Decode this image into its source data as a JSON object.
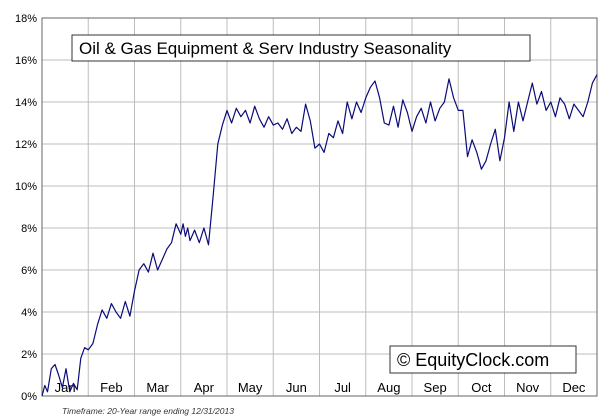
{
  "chart_data": {
    "type": "line",
    "title": "Oil & Gas Equipment & Serv Industry Seasonality",
    "xlabel": "",
    "ylabel": "",
    "ylim": [
      0,
      18
    ],
    "y_ticks": [
      "0%",
      "2%",
      "4%",
      "6%",
      "8%",
      "10%",
      "12%",
      "14%",
      "16%",
      "18%"
    ],
    "months": [
      "Jan",
      "Feb",
      "Mar",
      "Apr",
      "May",
      "Jun",
      "Jul",
      "Aug",
      "Sep",
      "Oct",
      "Nov",
      "Dec"
    ],
    "grid": true,
    "line_color": "#0b0b7a",
    "watermark": "© EquityClock.com",
    "footnote": "Timeframe: 20-Year range ending 12/31/2013",
    "series": [
      {
        "x": [
          0.0,
          0.06,
          0.12,
          0.2,
          0.28,
          0.36,
          0.44,
          0.52,
          0.6,
          0.68,
          0.76,
          0.84,
          0.92,
          1.0,
          1.1,
          1.2,
          1.3,
          1.4,
          1.5,
          1.6,
          1.7,
          1.8,
          1.9,
          2.0,
          2.1,
          2.2,
          2.3,
          2.4,
          2.5,
          2.6,
          2.7,
          2.8,
          2.9,
          3.0,
          3.05,
          3.1,
          3.15,
          3.2,
          3.3,
          3.4,
          3.5,
          3.6,
          3.7,
          3.8,
          3.9,
          4.0,
          4.1,
          4.2,
          4.3,
          4.4,
          4.5,
          4.6,
          4.7,
          4.8,
          4.9,
          5.0,
          5.1,
          5.2,
          5.3,
          5.4,
          5.5,
          5.6,
          5.7,
          5.8,
          5.9,
          6.0,
          6.1,
          6.2,
          6.3,
          6.4,
          6.5,
          6.6,
          6.7,
          6.8,
          6.9,
          7.0,
          7.1,
          7.2,
          7.3,
          7.4,
          7.5,
          7.6,
          7.7,
          7.8,
          7.9,
          8.0,
          8.1,
          8.2,
          8.3,
          8.4,
          8.5,
          8.6,
          8.7,
          8.8,
          8.9,
          9.0,
          9.1,
          9.2,
          9.3,
          9.4,
          9.5,
          9.6,
          9.7,
          9.8,
          9.9,
          10.0,
          10.1,
          10.2,
          10.3,
          10.4,
          10.5,
          10.6,
          10.7,
          10.8,
          10.9,
          11.0,
          11.1,
          11.2,
          11.3,
          11.4,
          11.5,
          11.6,
          11.7,
          11.8,
          11.9,
          12.0
        ],
        "y": [
          0.0,
          0.5,
          0.2,
          1.3,
          1.5,
          1.0,
          0.4,
          1.3,
          0.2,
          0.6,
          0.3,
          1.8,
          2.3,
          2.2,
          2.5,
          3.4,
          4.1,
          3.7,
          4.4,
          4.0,
          3.7,
          4.5,
          3.8,
          5.0,
          6.0,
          6.3,
          5.9,
          6.8,
          6.0,
          6.5,
          7.0,
          7.3,
          8.2,
          7.7,
          8.2,
          7.6,
          8.0,
          7.4,
          7.9,
          7.3,
          8.0,
          7.2,
          9.5,
          12.0,
          12.9,
          13.6,
          13.0,
          13.7,
          13.3,
          13.6,
          13.0,
          13.8,
          13.2,
          12.8,
          13.3,
          12.9,
          13.0,
          12.7,
          13.2,
          12.5,
          12.8,
          12.6,
          13.9,
          13.1,
          11.8,
          12.0,
          11.6,
          12.5,
          12.3,
          13.1,
          12.5,
          14.0,
          13.2,
          14.0,
          13.5,
          14.2,
          14.7,
          15.0,
          14.2,
          13.0,
          12.9,
          13.8,
          12.8,
          14.1,
          13.5,
          12.6,
          13.3,
          13.7,
          13.0,
          14.0,
          13.1,
          13.7,
          14.0,
          15.1,
          14.2,
          13.6,
          13.6,
          11.4,
          12.2,
          11.6,
          10.8,
          11.2,
          12.0,
          12.7,
          11.2,
          12.3,
          14.0,
          12.6,
          14.0,
          13.1,
          14.0,
          14.9,
          13.9,
          14.5,
          13.6,
          14.0,
          13.3,
          14.2,
          13.9,
          13.2,
          13.9,
          13.6,
          13.3,
          14.0,
          14.9,
          15.3
        ]
      }
    ]
  }
}
